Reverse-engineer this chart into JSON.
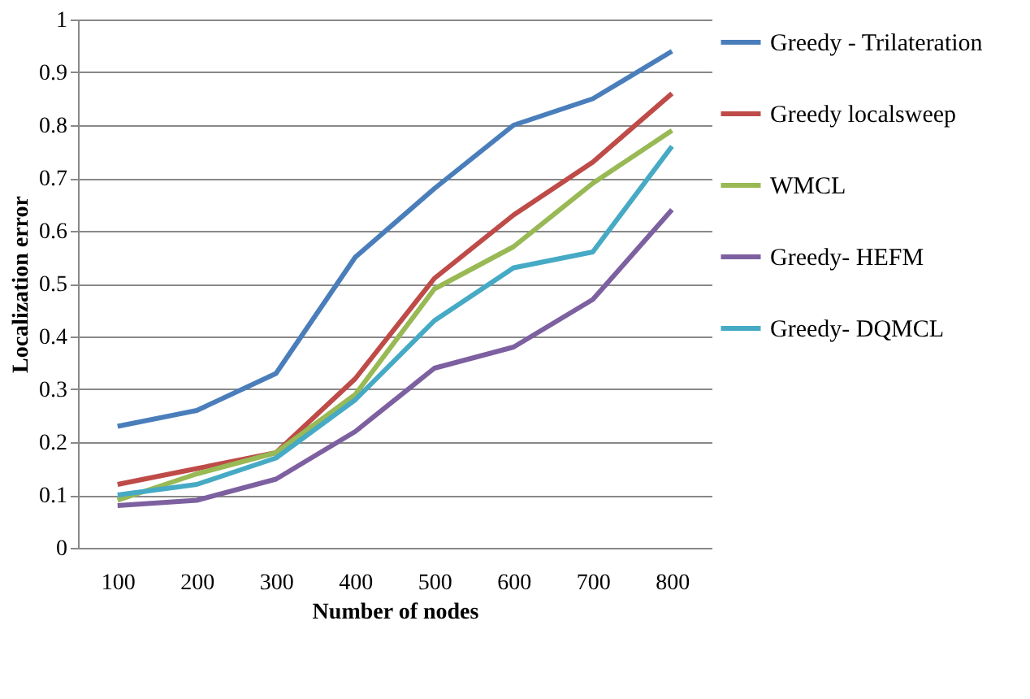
{
  "chart_data": {
    "type": "line",
    "xlabel": "Number of nodes",
    "ylabel": "Localization error",
    "categories": [
      "100",
      "200",
      "300",
      "400",
      "500",
      "600",
      "700",
      "800"
    ],
    "series": [
      {
        "name": "Greedy - Trilateration",
        "color": "#4a7ebb",
        "values": [
          0.23,
          0.26,
          0.33,
          0.55,
          0.68,
          0.8,
          0.85,
          0.94
        ]
      },
      {
        "name": "Greedy localsweep",
        "color": "#be4b48",
        "values": [
          0.12,
          0.15,
          0.18,
          0.32,
          0.51,
          0.63,
          0.73,
          0.86
        ]
      },
      {
        "name": "WMCL",
        "color": "#98b954",
        "values": [
          0.09,
          0.14,
          0.18,
          0.29,
          0.49,
          0.57,
          0.69,
          0.79
        ]
      },
      {
        "name": "Greedy- HEFM",
        "color": "#7d60a0",
        "values": [
          0.08,
          0.09,
          0.13,
          0.22,
          0.34,
          0.38,
          0.47,
          0.64
        ]
      },
      {
        "name": "Greedy- DQMCL",
        "color": "#46aac5",
        "values": [
          0.1,
          0.12,
          0.17,
          0.28,
          0.43,
          0.53,
          0.56,
          0.76
        ]
      }
    ],
    "ylim": [
      0,
      1
    ],
    "yticks": [
      0,
      0.1,
      0.2,
      0.3,
      0.4,
      0.5,
      0.6,
      0.7,
      0.8,
      0.9,
      1
    ],
    "grid": "y",
    "legend": "right",
    "marker": "none",
    "line_style": "solid"
  }
}
